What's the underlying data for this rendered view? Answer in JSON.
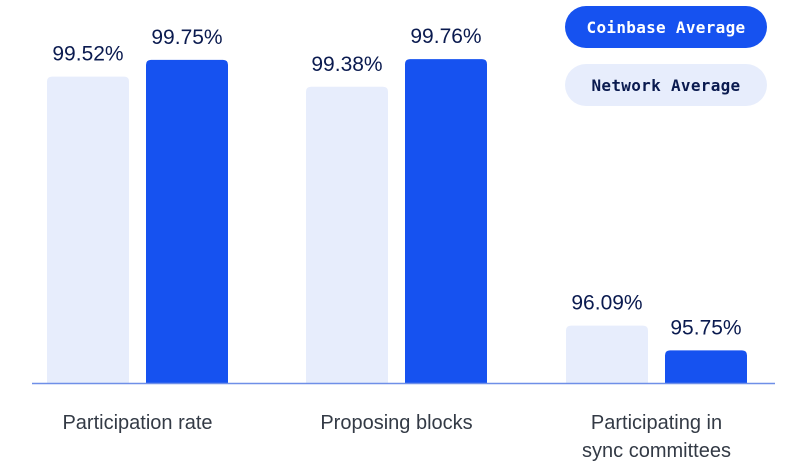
{
  "colors": {
    "coinbase": "#1652f0",
    "network": "#e7edfc",
    "text_dark": "#0a1a4f",
    "axis": "#6f8fe8"
  },
  "legend": [
    {
      "name": "Coinbase Average",
      "color": "#1652f0",
      "text_color": "#ffffff"
    },
    {
      "name": "Network Average",
      "color": "#e7edfc",
      "text_color": "#0a1a4f"
    }
  ],
  "chart_data": {
    "type": "bar",
    "title": "",
    "xlabel": "",
    "ylabel": "",
    "categories": [
      [
        "Participation rate"
      ],
      [
        "Proposing blocks"
      ],
      [
        "Participating in",
        "sync committees"
      ]
    ],
    "series": [
      {
        "name": "Network Average",
        "values": [
          99.52,
          99.38,
          96.09
        ],
        "labels": [
          "99.52%",
          "99.38%",
          "96.09%"
        ]
      },
      {
        "name": "Coinbase Average",
        "values": [
          99.75,
          99.76,
          95.75
        ],
        "labels": [
          "99.75%",
          "99.76%",
          "95.75%"
        ]
      }
    ],
    "legend_position": "top-right",
    "grid": false,
    "ylim": [
      95.3,
      99.9
    ]
  }
}
